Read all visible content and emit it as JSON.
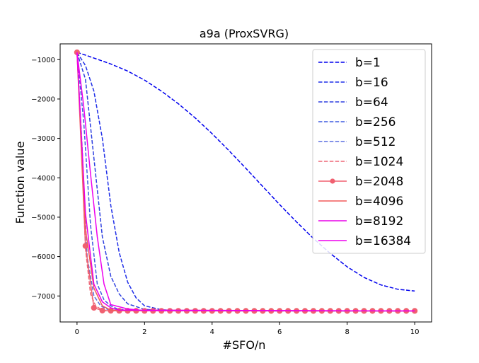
{
  "chart_data": {
    "type": "line",
    "title": "a9a (ProxSVRG)",
    "xlabel": "#SFO/n",
    "ylabel": "Function value",
    "xlim": [
      -0.5,
      10.5
    ],
    "ylim": [
      -7660,
      -600
    ],
    "xticks": [
      0,
      2,
      4,
      6,
      8,
      10
    ],
    "yticks": [
      -7000,
      -6000,
      -5000,
      -4000,
      -3000,
      -2000,
      -1000
    ],
    "xtick_labels": [
      "0",
      "2",
      "4",
      "6",
      "8",
      "10"
    ],
    "ytick_labels": [
      "−7000",
      "−6000",
      "−5000",
      "−4000",
      "−3000",
      "−2000",
      "−1000"
    ],
    "grid": false,
    "legend_position": "upper right",
    "series": [
      {
        "name": "b=1",
        "color": "#0000ee",
        "dash": true,
        "marker": false,
        "x": [
          0,
          0.25,
          0.5,
          0.75,
          1,
          1.5,
          2,
          2.5,
          3,
          3.5,
          4,
          4.5,
          5,
          5.5,
          6,
          6.5,
          7,
          7.5,
          8,
          8.5,
          9,
          9.5,
          10
        ],
        "y": [
          -815,
          -885,
          -960,
          -1035,
          -1110,
          -1290,
          -1520,
          -1800,
          -2120,
          -2480,
          -2880,
          -3310,
          -3760,
          -4220,
          -4680,
          -5120,
          -5540,
          -5920,
          -6260,
          -6530,
          -6720,
          -6830,
          -6875
        ]
      },
      {
        "name": "b=16",
        "color": "#1f2ee8",
        "dash": true,
        "marker": false,
        "x": [
          0,
          0.25,
          0.5,
          0.75,
          1,
          1.25,
          1.5,
          1.75,
          2,
          2.5,
          3,
          4,
          5,
          10
        ],
        "y": [
          -815,
          -1150,
          -1800,
          -3000,
          -4700,
          -5900,
          -6650,
          -7050,
          -7250,
          -7350,
          -7370,
          -7375,
          -7378,
          -7380
        ]
      },
      {
        "name": "b=64",
        "color": "#2d3fe0",
        "dash": true,
        "marker": false,
        "x": [
          0,
          0.25,
          0.5,
          0.75,
          1,
          1.25,
          1.5,
          2,
          2.5,
          3,
          10
        ],
        "y": [
          -815,
          -1500,
          -3500,
          -5500,
          -6500,
          -6950,
          -7200,
          -7340,
          -7370,
          -7375,
          -7380
        ]
      },
      {
        "name": "b=256",
        "color": "#3f5be0",
        "dash": true,
        "marker": false,
        "x": [
          0,
          0.2,
          0.4,
          0.6,
          0.8,
          1,
          1.2,
          1.5,
          2,
          10
        ],
        "y": [
          -815,
          -2600,
          -5200,
          -6700,
          -7100,
          -7250,
          -7330,
          -7360,
          -7375,
          -7380
        ]
      },
      {
        "name": "b=512",
        "color": "#5a6fe0",
        "dash": true,
        "marker": false,
        "x": [
          0,
          0.15,
          0.3,
          0.5,
          0.7,
          0.9,
          1.2,
          1.5,
          10
        ],
        "y": [
          -815,
          -3200,
          -6000,
          -7000,
          -7250,
          -7340,
          -7370,
          -7378,
          -7380
        ]
      },
      {
        "name": "b=1024",
        "color": "#ee6677",
        "dash": true,
        "marker": false,
        "x": [
          0,
          0.1,
          0.25,
          0.4,
          0.55,
          0.75,
          1,
          10
        ],
        "y": [
          -815,
          -2500,
          -5800,
          -6950,
          -7250,
          -7360,
          -7375,
          -7380
        ]
      },
      {
        "name": "b=2048",
        "color": "#f06070",
        "dash": false,
        "marker": true,
        "x": [
          0,
          0.25,
          0.5,
          0.75,
          1,
          1.25,
          1.5,
          1.75,
          2,
          2.25,
          2.5,
          2.75,
          3,
          3.25,
          3.5,
          3.75,
          4,
          4.25,
          4.5,
          4.75,
          5,
          5.25,
          5.5,
          5.75,
          6,
          6.25,
          6.5,
          6.75,
          7,
          7.25,
          7.5,
          7.75,
          8,
          8.25,
          8.5,
          8.75,
          9,
          9.25,
          9.5,
          9.75,
          10
        ],
        "y": [
          -815,
          -5730,
          -7300,
          -7370,
          -7375,
          -7376,
          -7377,
          -7377,
          -7378,
          -7378,
          -7378,
          -7378,
          -7378,
          -7378,
          -7378,
          -7379,
          -7379,
          -7379,
          -7379,
          -7379,
          -7379,
          -7379,
          -7379,
          -7379,
          -7379,
          -7379,
          -7379,
          -7379,
          -7380,
          -7380,
          -7380,
          -7380,
          -7380,
          -7380,
          -7380,
          -7380,
          -7380,
          -7380,
          -7380,
          -7380,
          -7380
        ]
      },
      {
        "name": "b=4096",
        "color": "#f25a5a",
        "dash": false,
        "marker": false,
        "x": [
          0,
          0.25,
          0.5,
          0.75,
          1,
          10
        ],
        "y": [
          -815,
          -5300,
          -6800,
          -7250,
          -7360,
          -7380
        ]
      },
      {
        "name": "b=8192",
        "color": "#e800e8",
        "dash": false,
        "marker": false,
        "x": [
          0,
          0.25,
          0.5,
          0.75,
          1,
          1.25,
          10
        ],
        "y": [
          -815,
          -4900,
          -6700,
          -7150,
          -7300,
          -7360,
          -7380
        ]
      },
      {
        "name": "b=16384",
        "color": "#ee00ee",
        "dash": false,
        "marker": false,
        "x": [
          0,
          0.2,
          0.4,
          0.6,
          0.8,
          1,
          1.5,
          2,
          10
        ],
        "y": [
          -815,
          -2200,
          -3900,
          -5500,
          -6700,
          -7220,
          -7330,
          -7370,
          -7380
        ]
      }
    ]
  }
}
